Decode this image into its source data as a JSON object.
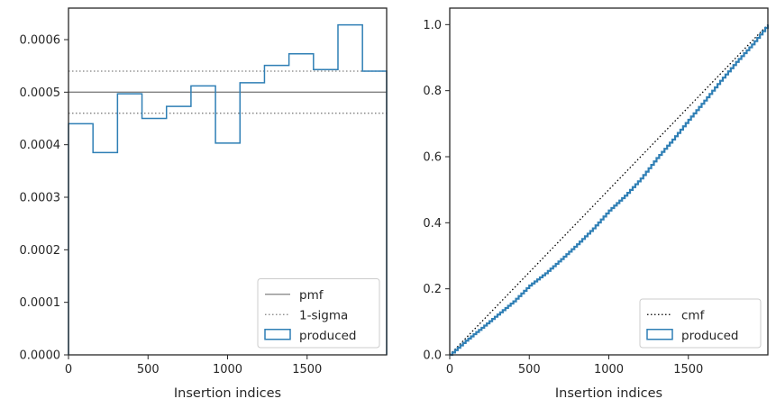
{
  "colors": {
    "produced": "#2f7fb5",
    "pmf": "#808080",
    "sigma": "#808080",
    "cmf": "#000000",
    "axes": "#262626"
  },
  "chart_data": [
    {
      "type": "step-histogram",
      "xlabel": "Insertion indices",
      "ylabel": "",
      "xlim": [
        0,
        2000
      ],
      "ylim": [
        0,
        0.00066
      ],
      "xticks": [
        0,
        500,
        1000,
        1500
      ],
      "xtick_labels": [
        "0",
        "500",
        "1000",
        "1500"
      ],
      "yticks": [
        0,
        0.0001,
        0.0002,
        0.0003,
        0.0004,
        0.0005,
        0.0006
      ],
      "ytick_labels": [
        "0.0000",
        "0.0001",
        "0.0002",
        "0.0003",
        "0.0004",
        "0.0005",
        "0.0006"
      ],
      "pmf": 0.0005,
      "sigma_band": [
        0.00046,
        0.00054
      ],
      "bin_edges": [
        0,
        154,
        308,
        462,
        616,
        770,
        924,
        1078,
        1232,
        1386,
        1540,
        1694,
        1848,
        2000
      ],
      "values": [
        0.00044,
        0.000385,
        0.000497,
        0.00045,
        0.000473,
        0.000512,
        0.000403,
        0.000518,
        0.000551,
        0.000573,
        0.000543,
        0.000628,
        0.00054
      ],
      "legend": {
        "placement": "lower-right",
        "entries": [
          {
            "label": "pmf",
            "style": "solid-line"
          },
          {
            "label": "1-sigma",
            "style": "dotted-line"
          },
          {
            "label": "produced",
            "style": "patch"
          }
        ]
      }
    },
    {
      "type": "step-line",
      "xlabel": "Insertion indices",
      "ylabel": "",
      "xlim": [
        0,
        2000
      ],
      "ylim": [
        0,
        1.05
      ],
      "xticks": [
        0,
        500,
        1000,
        1500
      ],
      "xtick_labels": [
        "0",
        "500",
        "1000",
        "1500"
      ],
      "yticks": [
        0,
        0.2,
        0.4,
        0.6,
        0.8,
        1.0
      ],
      "ytick_labels": [
        "0.0",
        "0.2",
        "0.4",
        "0.6",
        "0.8",
        "1.0"
      ],
      "cmf": {
        "x": [
          0,
          2000
        ],
        "y": [
          0,
          1.0
        ]
      },
      "produced": {
        "x": [
          0,
          100,
          200,
          300,
          400,
          500,
          600,
          700,
          800,
          900,
          1000,
          1100,
          1200,
          1300,
          1400,
          1500,
          1600,
          1700,
          1800,
          1900,
          2000
        ],
        "y": [
          0,
          0.043,
          0.082,
          0.122,
          0.162,
          0.21,
          0.247,
          0.29,
          0.335,
          0.383,
          0.437,
          0.482,
          0.534,
          0.596,
          0.652,
          0.712,
          0.77,
          0.83,
          0.887,
          0.94,
          1.0
        ]
      },
      "legend": {
        "placement": "lower-right",
        "entries": [
          {
            "label": "cmf",
            "style": "dotted-line"
          },
          {
            "label": "produced",
            "style": "patch"
          }
        ]
      }
    }
  ]
}
